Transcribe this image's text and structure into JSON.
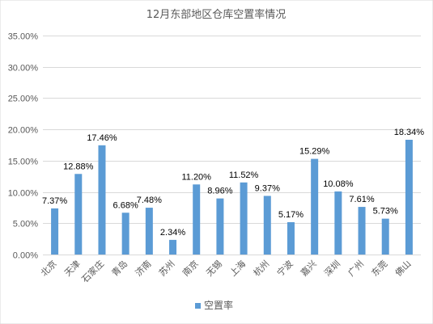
{
  "chart_data": {
    "type": "bar",
    "title": "12月东部地区仓库空置率情况",
    "categories": [
      "北京",
      "天津",
      "石家庄",
      "青岛",
      "济南",
      "苏州",
      "南京",
      "无锡",
      "上海",
      "杭州",
      "宁波",
      "嘉兴",
      "深圳",
      "广州",
      "东莞",
      "佛山"
    ],
    "series": [
      {
        "name": "空置率",
        "values": [
          7.37,
          12.88,
          17.46,
          6.68,
          7.48,
          2.34,
          11.2,
          8.96,
          11.52,
          9.37,
          5.17,
          15.29,
          10.08,
          7.61,
          5.73,
          18.34
        ],
        "labels": [
          "7.37%",
          "12.88%",
          "17.46%",
          "6.68%",
          "7.48%",
          "2.34%",
          "11.20%",
          "8.96%",
          "11.52%",
          "9.37%",
          "5.17%",
          "15.29%",
          "10.08%",
          "7.61%",
          "5.73%",
          "18.34%"
        ],
        "color": "#5b9bd5"
      }
    ],
    "ylim": [
      0,
      35
    ],
    "yticks": [
      0,
      5,
      10,
      15,
      20,
      25,
      30,
      35
    ],
    "ytick_labels": [
      "0.00%",
      "5.00%",
      "10.00%",
      "15.00%",
      "20.00%",
      "25.00%",
      "30.00%",
      "35.00%"
    ],
    "grid": true,
    "legend_position": "bottom",
    "xlabel": "",
    "ylabel": ""
  }
}
